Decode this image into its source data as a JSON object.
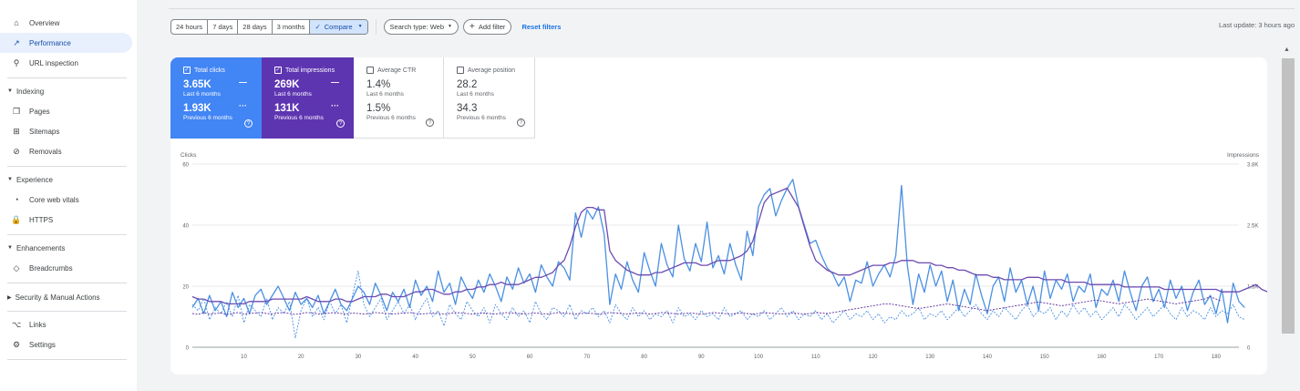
{
  "sidebar": {
    "items": [
      {
        "label": "Overview",
        "icon": "home-icon",
        "glyph": "⌂"
      },
      {
        "label": "Performance",
        "icon": "trending-up-icon",
        "glyph": "↗",
        "active": true
      },
      {
        "label": "URL inspection",
        "icon": "search-icon",
        "glyph": "⚲"
      }
    ],
    "indexing": {
      "label": "Indexing",
      "items": [
        {
          "label": "Pages",
          "icon": "pages-icon",
          "glyph": "❐"
        },
        {
          "label": "Sitemaps",
          "icon": "sitemap-icon",
          "glyph": "⊞"
        },
        {
          "label": "Removals",
          "icon": "removals-icon",
          "glyph": "⊘"
        }
      ]
    },
    "experience": {
      "label": "Experience",
      "items": [
        {
          "label": "Core web vitals",
          "icon": "gauge-icon",
          "glyph": "◔"
        },
        {
          "label": "HTTPS",
          "icon": "lock-icon",
          "glyph": "🔒"
        }
      ]
    },
    "enhancements": {
      "label": "Enhancements",
      "items": [
        {
          "label": "Breadcrumbs",
          "icon": "breadcrumbs-icon",
          "glyph": "◇"
        }
      ]
    },
    "security": {
      "label": "Security & Manual Actions"
    },
    "bottom": [
      {
        "label": "Links",
        "icon": "links-icon",
        "glyph": "⌥"
      },
      {
        "label": "Settings",
        "icon": "settings-icon",
        "glyph": "⚙"
      }
    ]
  },
  "filters": {
    "ranges": [
      "24 hours",
      "7 days",
      "28 days",
      "3 months"
    ],
    "compare": "Compare",
    "compare_check": "✓",
    "search_type": "Search type: Web",
    "add_filter": "Add filter",
    "add_glyph": "+",
    "reset": "Reset filters",
    "last_update": "Last update: 3 hours ago"
  },
  "metrics": {
    "clicks": {
      "label": "Total clicks",
      "value": "3.65K",
      "period": "Last 6 months",
      "prev_value": "1.93K",
      "prev_period": "Previous 6 months",
      "checked": true,
      "color": "#4285f4"
    },
    "impressions": {
      "label": "Total impressions",
      "value": "269K",
      "period": "Last 6 months",
      "prev_value": "131K",
      "prev_period": "Previous 6 months",
      "checked": true,
      "color": "#5e35b1"
    },
    "ctr": {
      "label": "Average CTR",
      "value": "1.4%",
      "period": "Last 6 months",
      "prev_value": "1.5%",
      "prev_period": "Previous 6 months",
      "checked": false
    },
    "position": {
      "label": "Average position",
      "value": "28.2",
      "period": "Last 6 months",
      "prev_value": "34.3",
      "prev_period": "Previous 6 months",
      "checked": false
    },
    "help_glyph": "?"
  },
  "chart_data": {
    "type": "line",
    "ylabel": "Clicks",
    "y2label": "Impressions",
    "ylim": [
      0,
      60
    ],
    "y2lim": [
      0,
      3800
    ],
    "yticks": [
      "0",
      "20",
      "40",
      "60"
    ],
    "y2ticks": [
      "0",
      "1.3K",
      "2.5K",
      "3.8K"
    ],
    "xticks": [
      10,
      20,
      30,
      40,
      50,
      60,
      70,
      80,
      90,
      100,
      110,
      120,
      130,
      140,
      150,
      160,
      170,
      180
    ],
    "xlim": [
      1,
      184
    ],
    "grid": true,
    "series": [
      {
        "name": "Total clicks",
        "axis": "left",
        "style": "solid",
        "color": "#4a90e2",
        "values": [
          13,
          16,
          11,
          17,
          12,
          15,
          10,
          18,
          13,
          16,
          11,
          17,
          19,
          14,
          17,
          20,
          16,
          12,
          18,
          14,
          16,
          13,
          17,
          11,
          15,
          19,
          14,
          12,
          16,
          20,
          18,
          14,
          21,
          17,
          12,
          18,
          15,
          19,
          13,
          22,
          17,
          20,
          15,
          25,
          18,
          21,
          14,
          23,
          19,
          16,
          22,
          18,
          24,
          20,
          15,
          23,
          19,
          26,
          21,
          24,
          18,
          27,
          23,
          20,
          28,
          26,
          22,
          44,
          36,
          45,
          42,
          46,
          37,
          14,
          24,
          19,
          28,
          22,
          18,
          31,
          25,
          20,
          34,
          27,
          23,
          40,
          29,
          25,
          34,
          28,
          41,
          26,
          30,
          24,
          34,
          27,
          22,
          38,
          30,
          46,
          50,
          52,
          43,
          48,
          52,
          55,
          46,
          40,
          34,
          35,
          30,
          26,
          24,
          20,
          23,
          15,
          22,
          21,
          28,
          20,
          24,
          27,
          23,
          30,
          53,
          27,
          14,
          24,
          18,
          27,
          20,
          25,
          15,
          22,
          12,
          19,
          14,
          24,
          17,
          11,
          20,
          23,
          15,
          26,
          18,
          22,
          14,
          20,
          12,
          25,
          16,
          22,
          19,
          24,
          15,
          20,
          18,
          24,
          13,
          19,
          17,
          22,
          15,
          25,
          18,
          12,
          20,
          23,
          15,
          19,
          13,
          22,
          16,
          20,
          12,
          18,
          22,
          14,
          17,
          11,
          19,
          8,
          21,
          15,
          13
        ]
      },
      {
        "name": "Total impressions",
        "axis": "right",
        "style": "solid",
        "color": "#6c4bb2",
        "values": [
          1050,
          1000,
          1000,
          950,
          950,
          950,
          900,
          900,
          900,
          900,
          950,
          950,
          950,
          950,
          1000,
          1000,
          1000,
          1000,
          1000,
          1000,
          1050,
          1000,
          950,
          950,
          950,
          1000,
          1000,
          950,
          950,
          1000,
          1050,
          1050,
          1050,
          1100,
          1100,
          1050,
          1050,
          1050,
          1100,
          1150,
          1150,
          1200,
          1200,
          1150,
          1100,
          1100,
          1150,
          1150,
          1200,
          1200,
          1250,
          1250,
          1300,
          1300,
          1350,
          1300,
          1300,
          1300,
          1350,
          1400,
          1450,
          1450,
          1500,
          1550,
          1700,
          1800,
          2100,
          2500,
          2800,
          2900,
          2900,
          2850,
          2850,
          2000,
          1800,
          1700,
          1600,
          1550,
          1500,
          1500,
          1500,
          1550,
          1550,
          1600,
          1650,
          1700,
          1750,
          1750,
          1750,
          1700,
          1700,
          1750,
          1800,
          1800,
          1800,
          1850,
          1900,
          2000,
          2200,
          2600,
          3000,
          3150,
          3200,
          3250,
          3300,
          3100,
          2900,
          2500,
          2100,
          1800,
          1700,
          1600,
          1550,
          1500,
          1500,
          1500,
          1550,
          1600,
          1650,
          1700,
          1700,
          1700,
          1750,
          1750,
          1800,
          1800,
          1800,
          1750,
          1750,
          1750,
          1700,
          1700,
          1650,
          1650,
          1600,
          1600,
          1550,
          1500,
          1500,
          1500,
          1450,
          1450,
          1400,
          1400,
          1400,
          1400,
          1450,
          1450,
          1450,
          1400,
          1400,
          1400,
          1400,
          1350,
          1350,
          1350,
          1350,
          1300,
          1300,
          1300,
          1300,
          1300,
          1300,
          1250,
          1250,
          1250,
          1250,
          1250,
          1250,
          1250,
          1200,
          1200,
          1200,
          1200,
          1200,
          1200,
          1200,
          1200,
          1200,
          1200,
          1150,
          1150,
          1150,
          1150,
          1200,
          1250,
          1300,
          1200,
          1150
        ]
      },
      {
        "name": "Total clicks (previous)",
        "axis": "left",
        "style": "dashed",
        "color": "#4a90e2",
        "values": [
          14,
          12,
          16,
          9,
          13,
          11,
          15,
          10,
          17,
          8,
          14,
          12,
          10,
          16,
          9,
          13,
          11,
          15,
          3,
          12,
          16,
          10,
          13,
          9,
          15,
          11,
          14,
          8,
          17,
          25,
          14,
          10,
          13,
          16,
          9,
          12,
          15,
          11,
          14,
          9,
          13,
          16,
          10,
          12,
          7,
          14,
          11,
          9,
          15,
          12,
          10,
          13,
          8,
          14,
          11,
          9,
          13,
          10,
          12,
          8,
          15,
          11,
          9,
          13,
          12,
          10,
          14,
          9,
          12,
          11,
          13,
          10,
          12,
          8,
          14,
          11,
          9,
          13,
          10,
          12,
          9,
          11,
          10,
          12,
          8,
          13,
          10,
          11,
          9,
          12,
          10,
          11,
          9,
          13,
          10,
          11,
          12,
          9,
          11,
          10,
          12,
          9,
          11,
          13,
          10,
          12,
          9,
          11,
          10,
          12,
          9,
          11,
          8,
          10,
          12,
          9,
          11,
          10,
          12,
          9,
          11,
          8,
          10,
          9,
          12,
          10,
          11,
          13,
          9,
          11,
          10,
          12,
          9,
          11,
          13,
          10,
          12,
          14,
          11,
          9,
          12,
          10,
          13,
          11,
          9,
          12,
          14,
          10,
          12,
          11,
          13,
          9,
          12,
          10,
          14,
          11,
          13,
          10,
          12,
          9,
          11,
          13,
          10,
          14,
          12,
          9,
          11,
          13,
          10,
          12,
          14,
          11,
          9,
          13,
          10,
          12,
          11,
          9,
          13,
          10,
          12,
          11,
          14,
          10,
          9
        ]
      },
      {
        "name": "Total impressions (previous)",
        "axis": "right",
        "style": "dashed",
        "color": "#5b2c9c",
        "values": [
          700,
          680,
          720,
          690,
          700,
          710,
          680,
          700,
          720,
          690,
          700,
          710,
          720,
          700,
          690,
          710,
          720,
          700,
          680,
          700,
          720,
          710,
          690,
          700,
          710,
          720,
          700,
          690,
          710,
          700,
          690,
          700,
          720,
          710,
          700,
          690,
          700,
          710,
          720,
          700,
          690,
          700,
          710,
          700,
          690,
          700,
          720,
          710,
          700,
          690,
          700,
          710,
          700,
          690,
          700,
          720,
          710,
          700,
          690,
          700,
          710,
          700,
          690,
          700,
          720,
          710,
          700,
          690,
          700,
          710,
          700,
          690,
          700,
          720,
          710,
          700,
          690,
          700,
          710,
          700,
          690,
          700,
          720,
          710,
          700,
          690,
          700,
          710,
          700,
          690,
          700,
          720,
          710,
          700,
          690,
          700,
          710,
          700,
          690,
          700,
          720,
          710,
          700,
          690,
          700,
          710,
          700,
          690,
          700,
          720,
          710,
          700,
          720,
          740,
          760,
          780,
          800,
          820,
          840,
          860,
          880,
          900,
          900,
          880,
          860,
          840,
          820,
          800,
          820,
          840,
          860,
          880,
          900,
          880,
          860,
          840,
          820,
          800,
          780,
          760,
          780,
          800,
          820,
          840,
          860,
          880,
          900,
          920,
          940,
          920,
          900,
          880,
          860,
          880,
          900,
          920,
          940,
          960,
          980,
          960,
          940,
          920,
          900,
          920,
          940,
          960,
          980,
          1000,
          980,
          960,
          940,
          920,
          900,
          920,
          940,
          960,
          980,
          1000,
          1050,
          1000,
          960
        ]
      }
    ]
  }
}
